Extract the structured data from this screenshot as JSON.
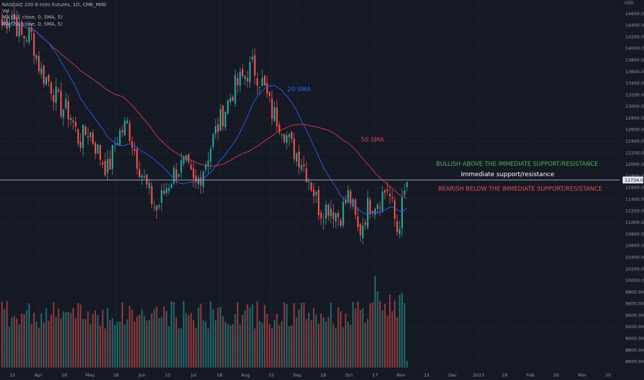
{
  "legend": {
    "symbol": "NASDAQ 100 E-mini Futures, 1D, CME_MINI",
    "vol": "Vol",
    "ma50": "MA (50, close, 0, SMA, 5)",
    "ma20": "MA (20, close, 0, SMA, 5)"
  },
  "annotations": {
    "sma20": "20 SMA",
    "sma50": "50 SMA",
    "bullish": "BULLISH ABOVE THE IMMEDIATE SUPPORT/RESISTANCE",
    "support": "Immediate support/resistance",
    "bearish": "BEARISH BELOW THE IMMEDIATE SUPPORT/RESISTANCE"
  },
  "colors": {
    "background": "#151924",
    "up": "#26a69a",
    "down": "#ef5350",
    "ma20": "#2962ff",
    "ma50": "#e0394b",
    "bullish_text": "#4caf50",
    "bearish_text": "#e84a50",
    "level_line": "#b2b5be"
  },
  "chart_data": {
    "type": "candlestick",
    "currency_label": "USD",
    "price_axis": {
      "min": 8500,
      "max": 14800,
      "ticks": [
        8600,
        8800,
        9000,
        9200,
        9400,
        9600,
        9800,
        10000,
        10200,
        10400,
        10600,
        10800,
        11000,
        11200,
        11400,
        11600,
        11800,
        12000,
        12200,
        12400,
        12600,
        12800,
        13000,
        13200,
        13400,
        13600,
        13800,
        14000,
        14200,
        14400,
        14600
      ]
    },
    "current_price_label": "11734.00",
    "support_resistance_level": 11734,
    "time_axis": {
      "labels": [
        "15",
        "Apr",
        "18",
        "May",
        "16",
        "Jun",
        "15",
        "Jul",
        "18",
        "Aug",
        "15",
        "Sep",
        "19",
        "Oct",
        "17",
        "Nov",
        "15",
        "Dec",
        "2023",
        "18",
        "Feb",
        "20",
        "Mar",
        "20"
      ]
    },
    "price_path": [
      14400,
      14600,
      14200,
      14250,
      13600,
      13400,
      13000,
      12900,
      12400,
      12600,
      12200,
      11900,
      12500,
      12700,
      12100,
      11600,
      11200,
      11600,
      11900,
      12000,
      11600,
      12000,
      12500,
      12900,
      13300,
      13500,
      13700,
      13400,
      12900,
      12700,
      12300,
      12100,
      11700,
      11200,
      11300,
      11100,
      11500,
      10800,
      11300,
      11400,
      11600,
      10850,
      11700
    ],
    "volume_range": [
      8500,
      10200
    ],
    "series": [
      {
        "name": "20 SMA"
      },
      {
        "name": "50 SMA"
      }
    ]
  }
}
